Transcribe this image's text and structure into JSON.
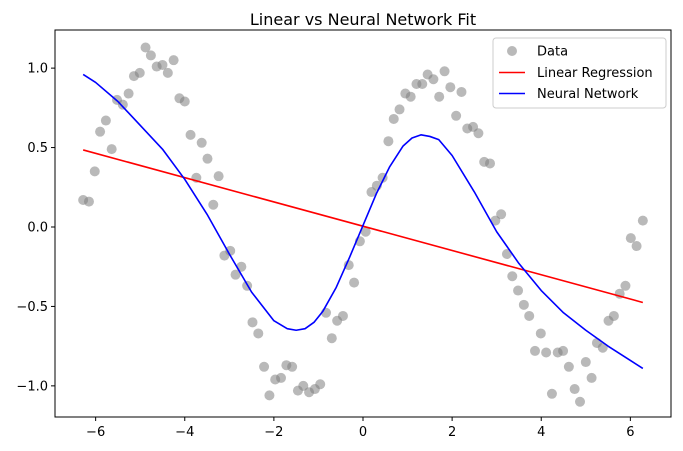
{
  "chart_data": {
    "type": "line",
    "title": "Linear vs Neural Network Fit",
    "xlabel": "",
    "ylabel": "",
    "xlim": [
      -6.912,
      6.912
    ],
    "ylim": [
      -1.196,
      1.24
    ],
    "grid": false,
    "legend_position": "top-right",
    "x_ticks": [
      -6,
      -4,
      -2,
      0,
      2,
      4,
      6
    ],
    "x_tick_labels": [
      "−6",
      "−4",
      "−2",
      "0",
      "2",
      "4",
      "6"
    ],
    "y_ticks": [
      -1.0,
      -0.5,
      0.0,
      0.5,
      1.0
    ],
    "y_tick_labels": [
      "−1.0",
      "−0.5",
      "0.0",
      "0.5",
      "1.0"
    ],
    "series": [
      {
        "name": "Data",
        "kind": "scatter",
        "color": "#808080",
        "points": [
          [
            -6.28,
            0.17
          ],
          [
            -6.15,
            0.16
          ],
          [
            -6.02,
            0.35
          ],
          [
            -5.9,
            0.6
          ],
          [
            -5.77,
            0.67
          ],
          [
            -5.64,
            0.49
          ],
          [
            -5.52,
            0.8
          ],
          [
            -5.39,
            0.77
          ],
          [
            -5.26,
            0.84
          ],
          [
            -5.14,
            0.95
          ],
          [
            -5.01,
            0.97
          ],
          [
            -4.88,
            1.13
          ],
          [
            -4.76,
            1.08
          ],
          [
            -4.63,
            1.01
          ],
          [
            -4.5,
            1.02
          ],
          [
            -4.38,
            0.97
          ],
          [
            -4.25,
            1.05
          ],
          [
            -4.12,
            0.81
          ],
          [
            -4.0,
            0.79
          ],
          [
            -3.87,
            0.58
          ],
          [
            -3.74,
            0.31
          ],
          [
            -3.62,
            0.53
          ],
          [
            -3.49,
            0.43
          ],
          [
            -3.36,
            0.14
          ],
          [
            -3.24,
            0.32
          ],
          [
            -3.11,
            -0.18
          ],
          [
            -2.98,
            -0.15
          ],
          [
            -2.86,
            -0.3
          ],
          [
            -2.73,
            -0.25
          ],
          [
            -2.6,
            -0.37
          ],
          [
            -2.48,
            -0.6
          ],
          [
            -2.35,
            -0.67
          ],
          [
            -2.22,
            -0.88
          ],
          [
            -2.1,
            -1.06
          ],
          [
            -1.97,
            -0.96
          ],
          [
            -1.84,
            -0.95
          ],
          [
            -1.72,
            -0.87
          ],
          [
            -1.59,
            -0.88
          ],
          [
            -1.46,
            -1.03
          ],
          [
            -1.34,
            -1.0
          ],
          [
            -1.21,
            -1.04
          ],
          [
            -1.08,
            -1.02
          ],
          [
            -0.96,
            -0.99
          ],
          [
            -0.83,
            -0.54
          ],
          [
            -0.7,
            -0.7
          ],
          [
            -0.58,
            -0.59
          ],
          [
            -0.45,
            -0.56
          ],
          [
            -0.32,
            -0.24
          ],
          [
            -0.2,
            -0.35
          ],
          [
            -0.07,
            -0.09
          ],
          [
            0.06,
            -0.03
          ],
          [
            0.19,
            0.22
          ],
          [
            0.31,
            0.26
          ],
          [
            0.44,
            0.31
          ],
          [
            0.57,
            0.54
          ],
          [
            0.69,
            0.68
          ],
          [
            0.82,
            0.74
          ],
          [
            0.95,
            0.84
          ],
          [
            1.07,
            0.82
          ],
          [
            1.2,
            0.9
          ],
          [
            1.33,
            0.9
          ],
          [
            1.45,
            0.96
          ],
          [
            1.58,
            0.93
          ],
          [
            1.71,
            0.82
          ],
          [
            1.83,
            0.98
          ],
          [
            1.96,
            0.88
          ],
          [
            2.09,
            0.7
          ],
          [
            2.21,
            0.85
          ],
          [
            2.34,
            0.62
          ],
          [
            2.47,
            0.63
          ],
          [
            2.59,
            0.59
          ],
          [
            2.72,
            0.41
          ],
          [
            2.85,
            0.4
          ],
          [
            2.97,
            0.04
          ],
          [
            3.1,
            0.08
          ],
          [
            3.23,
            -0.17
          ],
          [
            3.35,
            -0.31
          ],
          [
            3.48,
            -0.4
          ],
          [
            3.61,
            -0.49
          ],
          [
            3.73,
            -0.56
          ],
          [
            3.86,
            -0.78
          ],
          [
            3.99,
            -0.67
          ],
          [
            4.11,
            -0.79
          ],
          [
            4.24,
            -1.05
          ],
          [
            4.37,
            -0.79
          ],
          [
            4.49,
            -0.78
          ],
          [
            4.62,
            -0.88
          ],
          [
            4.75,
            -1.02
          ],
          [
            4.87,
            -1.1
          ],
          [
            5.0,
            -0.85
          ],
          [
            5.13,
            -0.95
          ],
          [
            5.25,
            -0.73
          ],
          [
            5.38,
            -0.76
          ],
          [
            5.51,
            -0.59
          ],
          [
            5.63,
            -0.56
          ],
          [
            5.76,
            -0.42
          ],
          [
            5.89,
            -0.37
          ],
          [
            6.01,
            -0.07
          ],
          [
            6.14,
            -0.12
          ],
          [
            6.28,
            0.04
          ]
        ]
      },
      {
        "name": "Linear Regression",
        "kind": "line",
        "color": "#ff0000",
        "x": [
          -6.28,
          6.28
        ],
        "y": [
          0.485,
          -0.475
        ]
      },
      {
        "name": "Neural Network",
        "kind": "line",
        "color": "#0000ff",
        "x": [
          -6.28,
          -6.0,
          -5.5,
          -5.0,
          -4.5,
          -4.0,
          -3.5,
          -3.0,
          -2.5,
          -2.0,
          -1.7,
          -1.5,
          -1.3,
          -1.1,
          -0.9,
          -0.6,
          -0.3,
          0.0,
          0.3,
          0.6,
          0.9,
          1.1,
          1.3,
          1.5,
          1.7,
          2.0,
          2.5,
          3.0,
          3.5,
          4.0,
          4.5,
          5.0,
          5.5,
          6.0,
          6.28
        ],
        "y": [
          0.96,
          0.91,
          0.79,
          0.64,
          0.49,
          0.3,
          0.08,
          -0.17,
          -0.41,
          -0.59,
          -0.64,
          -0.65,
          -0.64,
          -0.6,
          -0.53,
          -0.38,
          -0.19,
          0.01,
          0.21,
          0.38,
          0.51,
          0.56,
          0.58,
          0.57,
          0.55,
          0.45,
          0.22,
          -0.03,
          -0.23,
          -0.4,
          -0.54,
          -0.65,
          -0.75,
          -0.84,
          -0.89
        ]
      }
    ]
  }
}
